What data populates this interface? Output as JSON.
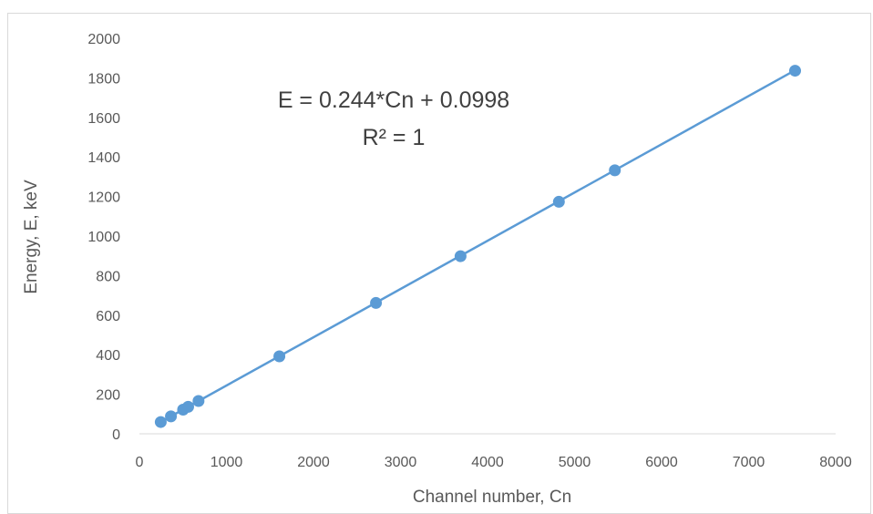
{
  "chart_data": {
    "type": "scatter",
    "title": "",
    "xlabel": "Channel number, Cn",
    "ylabel": "Energy, E, keV",
    "xlim": [
      0,
      8000
    ],
    "ylim": [
      0,
      2000
    ],
    "x_ticks": [
      0,
      1000,
      2000,
      3000,
      4000,
      5000,
      6000,
      7000,
      8000
    ],
    "y_ticks": [
      0,
      200,
      400,
      600,
      800,
      1000,
      1200,
      1400,
      1600,
      1800,
      2000
    ],
    "grid": false,
    "legend": "none",
    "series": [
      {
        "color": "#5b9bd5",
        "points": [
          {
            "x": 245,
            "y": 59.6
          },
          {
            "x": 362,
            "y": 88.0
          },
          {
            "x": 502,
            "y": 122.1
          },
          {
            "x": 560,
            "y": 136.5
          },
          {
            "x": 679,
            "y": 165.9
          },
          {
            "x": 1608,
            "y": 391.7
          },
          {
            "x": 2718,
            "y": 661.7
          },
          {
            "x": 3690,
            "y": 898.0
          },
          {
            "x": 4820,
            "y": 1173.2
          },
          {
            "x": 5463,
            "y": 1332.5
          },
          {
            "x": 7534,
            "y": 1836.1
          }
        ]
      }
    ],
    "trendline": {
      "slope": 0.244,
      "intercept": 0.0998,
      "color": "#5b9bd5",
      "equation_text": "E = 0.244*Cn + 0.0998",
      "r2_text": "R² = 1"
    }
  }
}
